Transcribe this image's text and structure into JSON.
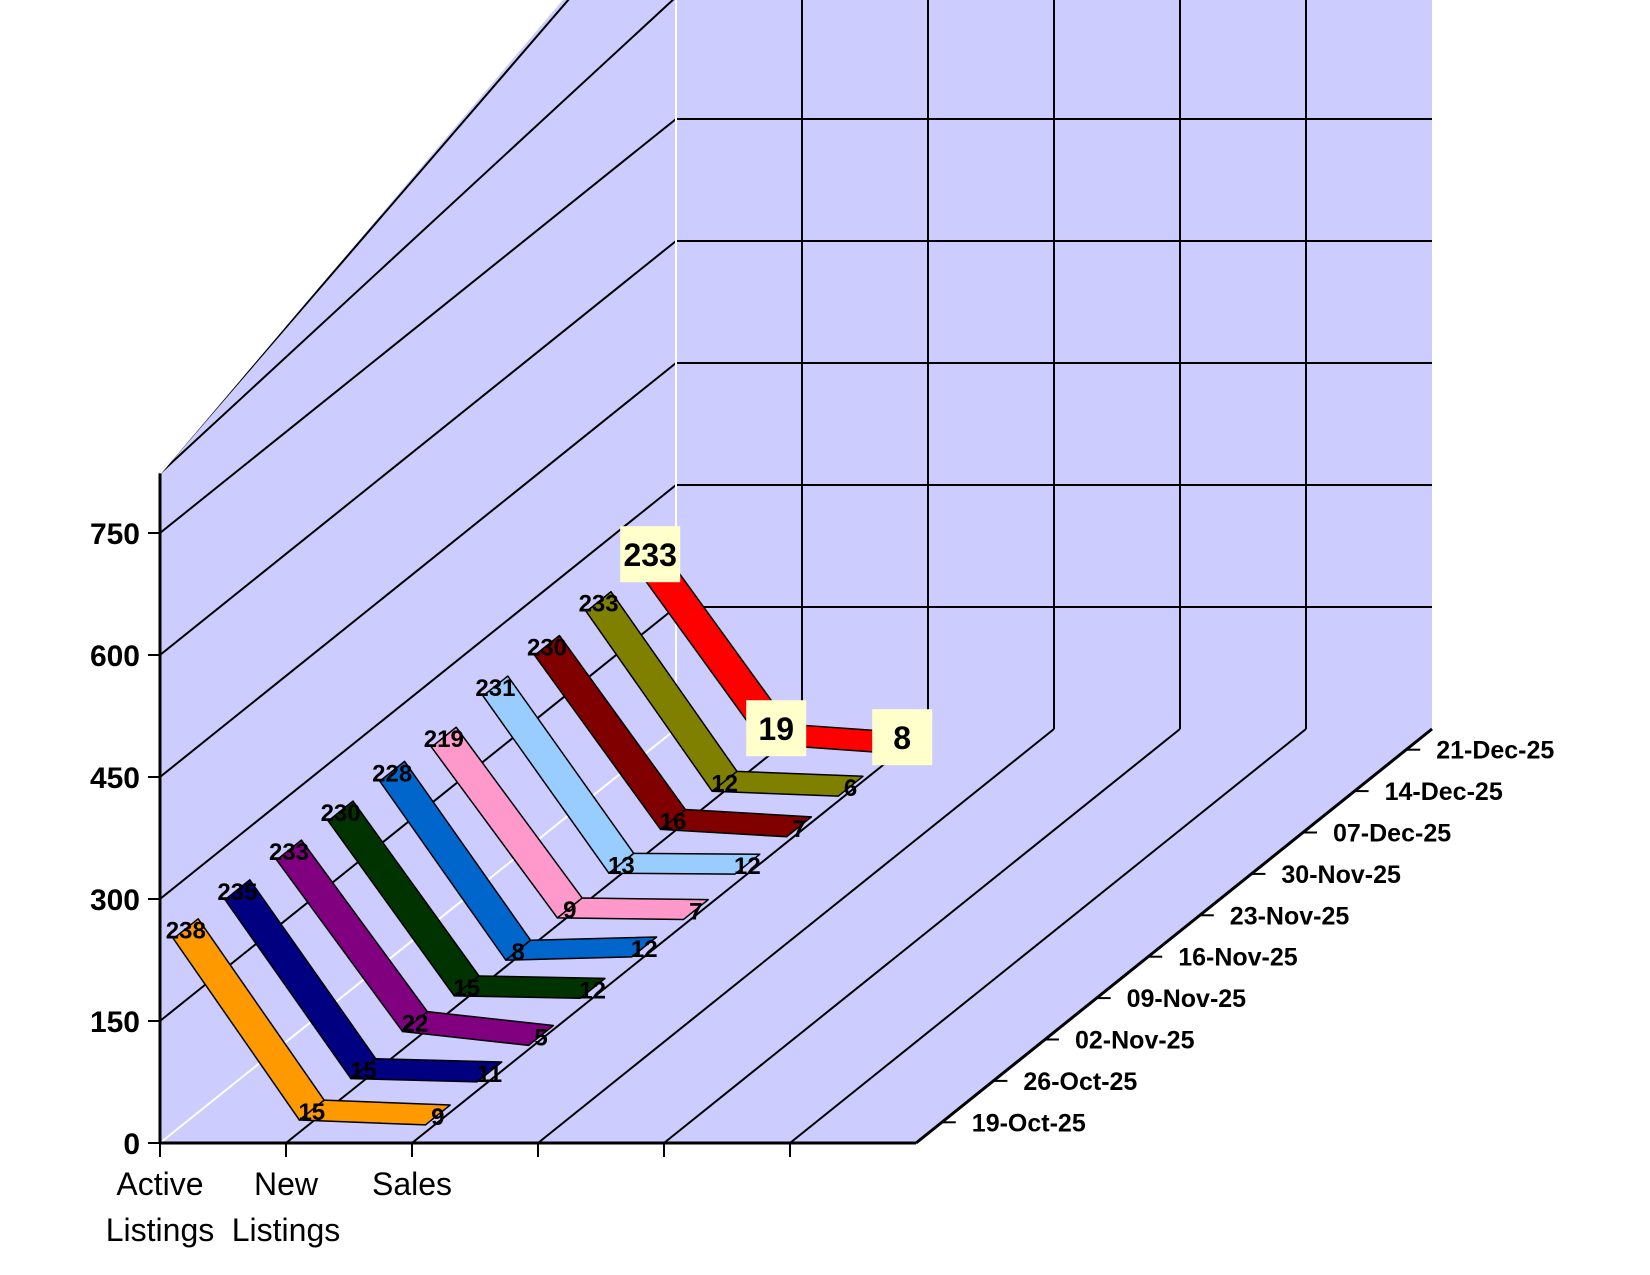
{
  "chart_data": {
    "type": "line",
    "subtype": "3d-line",
    "title": "",
    "xlabel": "",
    "ylabel": "",
    "categories": [
      [
        "Active",
        "Listings"
      ],
      [
        "New",
        "Listings"
      ],
      [
        "Sales"
      ]
    ],
    "ylim": [
      0,
      750
    ],
    "yticks": [
      "0",
      "150",
      "300",
      "450",
      "600",
      "750"
    ],
    "grid": true,
    "background_color": "#ccccff",
    "series": [
      {
        "name": "19-Oct-25",
        "color": "#ff9900",
        "values": [
          238,
          15,
          9
        ]
      },
      {
        "name": "26-Oct-25",
        "color": "#000080",
        "values": [
          235,
          15,
          11
        ]
      },
      {
        "name": "02-Nov-25",
        "color": "#800080",
        "values": [
          233,
          22,
          5
        ]
      },
      {
        "name": "09-Nov-25",
        "color": "#003300",
        "values": [
          230,
          15,
          12
        ]
      },
      {
        "name": "16-Nov-25",
        "color": "#0066cc",
        "values": [
          228,
          8,
          12
        ]
      },
      {
        "name": "23-Nov-25",
        "color": "#ff99cc",
        "values": [
          219,
          9,
          7
        ]
      },
      {
        "name": "30-Nov-25",
        "color": "#99ccff",
        "values": [
          231,
          13,
          12
        ]
      },
      {
        "name": "07-Dec-25",
        "color": "#800000",
        "values": [
          230,
          16,
          7
        ]
      },
      {
        "name": "14-Dec-25",
        "color": "#808000",
        "values": [
          233,
          12,
          6
        ]
      },
      {
        "name": "21-Dec-25",
        "color": "#ff0000",
        "values": [
          233,
          19,
          8
        ],
        "highlight": true
      }
    ]
  }
}
